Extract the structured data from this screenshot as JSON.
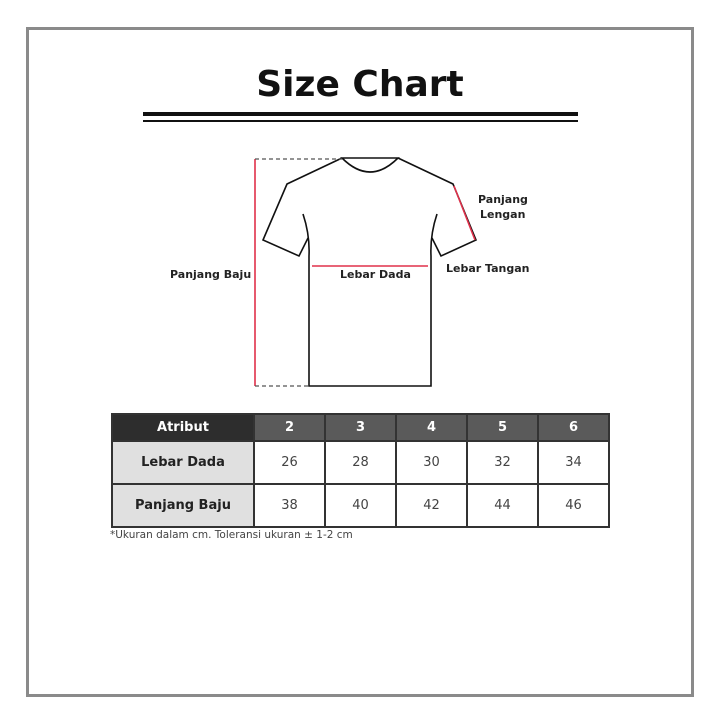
{
  "title": "Size Chart",
  "diagram": {
    "labels": {
      "panjang_baju": "Panjang Baju",
      "lebar_dada": "Lebar Dada",
      "panjang_lengan_1": "Panjang",
      "panjang_lengan_2": "Lengan",
      "lebar_tangan": "Lebar Tangan"
    },
    "colors": {
      "measure": "#e0304a",
      "outline": "#111111"
    }
  },
  "table": {
    "header": [
      "Atribut",
      "2",
      "3",
      "4",
      "5",
      "6"
    ],
    "rows": [
      {
        "label": "Lebar Dada",
        "values": [
          "26",
          "28",
          "30",
          "32",
          "34"
        ]
      },
      {
        "label": "Panjang Baju",
        "values": [
          "38",
          "40",
          "42",
          "44",
          "46"
        ]
      }
    ]
  },
  "note": "*Ukuran dalam cm. Toleransi ukuran ± 1-2 cm"
}
